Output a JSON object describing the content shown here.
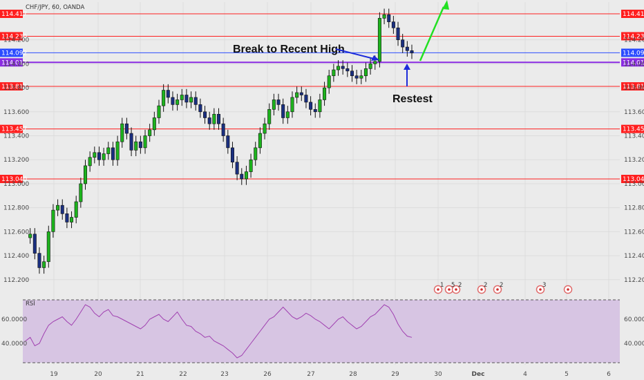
{
  "symbol_title": "CHF/JPY, 60, OANDA",
  "colors": {
    "background": "#ebebeb",
    "resistance_line": "#ff1f1f",
    "current_price": "#2b4cff",
    "support_line": "#8a2be2",
    "candle_up": "#1db31d",
    "candle_down": "#1a2f80",
    "arrow_up": "#22e022",
    "arrow_annotation": "#1c2bd9",
    "rsi_bg": "#d7c5e3",
    "rsi_line": "#a040b0"
  },
  "annotations": {
    "break_label": "Break to Recent High",
    "restest_label": "Restest"
  },
  "rsi": {
    "label": "RSI",
    "ticks": [
      "60.0000",
      "40.0000"
    ]
  },
  "events": [
    "1",
    "5",
    "2",
    "2",
    "2",
    "3"
  ],
  "chart_data": {
    "type": "candlestick",
    "title": "CHF/JPY, 60, OANDA",
    "ylim": [
      112.1,
      114.45
    ],
    "y_ticks": [
      114.2,
      114.0,
      113.8,
      113.6,
      113.4,
      113.2,
      113.0,
      112.8,
      112.6,
      112.4,
      112.2
    ],
    "y_tick_labels": [
      "114.200",
      "114.000",
      "113.800",
      "113.600",
      "113.400",
      "113.200",
      "113.000",
      "112.800",
      "112.600",
      "112.400",
      "112.200"
    ],
    "x_ticks": [
      "19",
      "20",
      "21",
      "22",
      "23",
      "26",
      "27",
      "28",
      "29",
      "30",
      "Dec",
      "4",
      "5",
      "6"
    ],
    "levels": [
      {
        "value": 114.417,
        "label": "114.417",
        "kind": "resistance"
      },
      {
        "value": 114.23,
        "label": "114.230",
        "kind": "resistance"
      },
      {
        "value": 114.092,
        "label": "114.092",
        "kind": "current"
      },
      {
        "value": 114.012,
        "label": "114.012",
        "kind": "support"
      },
      {
        "value": 113.812,
        "label": "113.812",
        "kind": "resistance"
      },
      {
        "value": 113.457,
        "label": "113.457",
        "kind": "resistance"
      },
      {
        "value": 113.04,
        "label": "113.040",
        "kind": "resistance"
      }
    ],
    "price_path": [
      112.55,
      112.58,
      112.42,
      112.3,
      112.35,
      112.6,
      112.78,
      112.82,
      112.75,
      112.68,
      112.72,
      112.85,
      113.0,
      113.15,
      113.22,
      113.26,
      113.2,
      113.25,
      113.3,
      113.2,
      113.35,
      113.5,
      113.42,
      113.28,
      113.35,
      113.3,
      113.4,
      113.45,
      113.55,
      113.65,
      113.78,
      113.72,
      113.66,
      113.7,
      113.74,
      113.68,
      113.72,
      113.66,
      113.6,
      113.55,
      113.5,
      113.58,
      113.5,
      113.4,
      113.3,
      113.18,
      113.08,
      113.04,
      113.1,
      113.2,
      113.3,
      113.42,
      113.5,
      113.62,
      113.7,
      113.66,
      113.55,
      113.6,
      113.72,
      113.76,
      113.74,
      113.68,
      113.62,
      113.6,
      113.7,
      113.8,
      113.9,
      113.95,
      113.98,
      113.96,
      113.94,
      113.9,
      113.88,
      113.9,
      113.96,
      114.0,
      114.02,
      114.38,
      114.41,
      114.35,
      114.3,
      114.2,
      114.14,
      114.11,
      114.09
    ],
    "rsi_ylim": [
      20,
      85
    ],
    "rsi_values": [
      42,
      45,
      38,
      40,
      48,
      55,
      58,
      60,
      62,
      58,
      55,
      60,
      66,
      72,
      70,
      65,
      62,
      66,
      68,
      63,
      62,
      60,
      58,
      56,
      54,
      52,
      55,
      60,
      62,
      64,
      60,
      58,
      62,
      66,
      60,
      55,
      54,
      50,
      48,
      45,
      46,
      42,
      40,
      38,
      35,
      32,
      28,
      30,
      35,
      40,
      45,
      50,
      55,
      60,
      62,
      66,
      70,
      66,
      62,
      60,
      62,
      65,
      63,
      60,
      58,
      55,
      52,
      56,
      60,
      62,
      58,
      55,
      52,
      54,
      58,
      62,
      64,
      68,
      72,
      70,
      64,
      56,
      50,
      46,
      45
    ]
  }
}
